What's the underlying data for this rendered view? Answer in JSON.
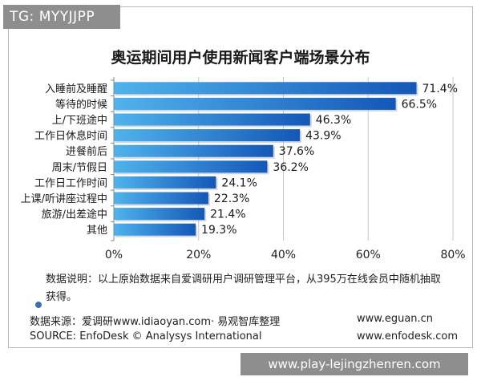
{
  "tag": "TG: MYYJJPP",
  "watermark": "www.play-lejingzhenren.com",
  "note": "数据说明：以上原始数据来自爱调研用户调研管理平台，从395万在线会员中随机抽取获得。",
  "source_cn": "数据来源：爱调研www.idiaoyan.com· 易观智库整理",
  "source_en": "SOURCE: EnfoDesk © Analysys International",
  "site1": "www.eguan.cn",
  "site2": "www.enfodesk.com",
  "colors": {
    "bar_light": "#4fb3ec",
    "bar_dark": "#1457b8",
    "grid": "#c8c8c8",
    "dot": "#3a6fb5"
  },
  "chart_data": {
    "type": "bar",
    "orientation": "horizontal",
    "title": "奥运期间用户使用新闻客户端场景分布",
    "categories": [
      "入睡前及睡醒",
      "等待的时候",
      "上/下班途中",
      "工作日休息时间",
      "进餐前后",
      "周末/节假日",
      "工作日工作时间",
      "上课/听讲座过程中",
      "旅游/出差途中",
      "其他"
    ],
    "values": [
      71.4,
      66.5,
      46.3,
      43.9,
      37.6,
      36.2,
      24.1,
      22.3,
      21.4,
      19.3
    ],
    "value_labels": [
      "71.4%",
      "66.5%",
      "46.3%",
      "43.9%",
      "37.6%",
      "36.2%",
      "24.1%",
      "22.3%",
      "21.4%",
      "19.3%"
    ],
    "xlim": [
      0,
      80
    ],
    "xticks": [
      0,
      20,
      40,
      60,
      80
    ],
    "xtick_labels": [
      "0%",
      "20%",
      "40%",
      "60%",
      "80%"
    ],
    "grid": true
  }
}
